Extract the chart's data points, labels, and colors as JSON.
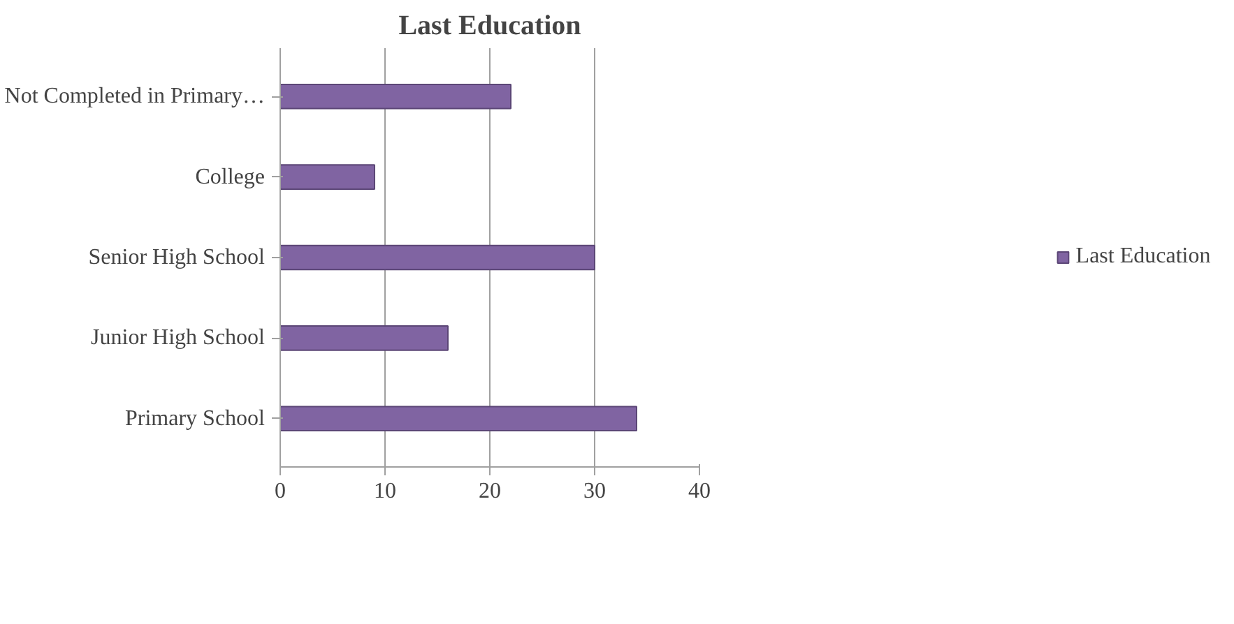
{
  "chart_data": {
    "type": "bar",
    "orientation": "horizontal",
    "title": "Last Education",
    "categories": [
      "Not Completed in Primary…",
      "College",
      "Senior High School",
      "Junior High School",
      "Primary School"
    ],
    "series": [
      {
        "name": "Last Education",
        "color": "#8064a2",
        "values": [
          22,
          9,
          30,
          16,
          34
        ]
      }
    ],
    "xlim": [
      0,
      40
    ],
    "xticks": [
      0,
      10,
      20,
      30,
      40
    ],
    "grid": "x",
    "legend": "right"
  }
}
